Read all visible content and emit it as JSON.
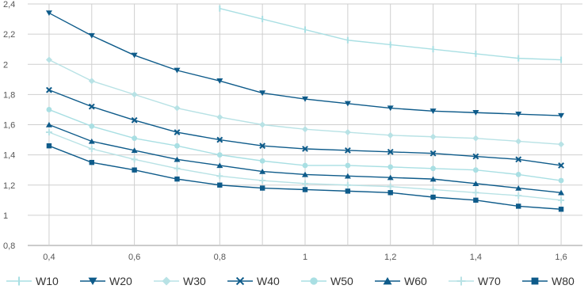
{
  "chart_data": {
    "type": "line",
    "title": "",
    "xlabel": "",
    "ylabel": "",
    "xlim": [
      0.35,
      1.65
    ],
    "ylim": [
      0.8,
      2.4
    ],
    "x_ticks": [
      "0,4",
      "0,6",
      "0,8",
      "1",
      "1,2",
      "1,4",
      "1,6"
    ],
    "y_ticks": [
      "0,8",
      "1",
      "1,2",
      "1,4",
      "1,6",
      "1,8",
      "2",
      "2,2",
      "2,4"
    ],
    "grid": "vertical and horizontal",
    "legend_position": "bottom",
    "x": [
      0.4,
      0.5,
      0.6,
      0.7,
      0.8,
      0.9,
      1.0,
      1.1,
      1.2,
      1.3,
      1.4,
      1.5,
      1.6
    ],
    "series": [
      {
        "name": "W10",
        "color": "#a9dfe3",
        "marker": "bar",
        "values": [
          null,
          null,
          null,
          null,
          2.37,
          2.3,
          2.23,
          2.16,
          2.13,
          2.1,
          2.07,
          2.04,
          2.03
        ]
      },
      {
        "name": "W20",
        "color": "#0e5b8a",
        "marker": "triangle-down",
        "values": [
          2.34,
          2.19,
          2.06,
          1.96,
          1.89,
          1.81,
          1.77,
          1.74,
          1.71,
          1.69,
          1.68,
          1.67,
          1.66
        ]
      },
      {
        "name": "W30",
        "color": "#b8e2e5",
        "marker": "diamond",
        "values": [
          2.03,
          1.89,
          1.8,
          1.71,
          1.65,
          1.6,
          1.57,
          1.55,
          1.53,
          1.52,
          1.51,
          1.49,
          1.47
        ]
      },
      {
        "name": "W40",
        "color": "#0e5b8a",
        "marker": "x",
        "values": [
          1.83,
          1.72,
          1.63,
          1.55,
          1.5,
          1.46,
          1.44,
          1.43,
          1.42,
          1.41,
          1.39,
          1.37,
          1.33
        ]
      },
      {
        "name": "W50",
        "color": "#a9dfe3",
        "marker": "circle",
        "values": [
          1.7,
          1.59,
          1.51,
          1.46,
          1.4,
          1.36,
          1.33,
          1.33,
          1.32,
          1.31,
          1.3,
          1.27,
          1.23
        ]
      },
      {
        "name": "W60",
        "color": "#0e5b8a",
        "marker": "triangle-up",
        "values": [
          1.6,
          1.49,
          1.43,
          1.37,
          1.33,
          1.29,
          1.27,
          1.26,
          1.25,
          1.24,
          1.21,
          1.18,
          1.15
        ]
      },
      {
        "name": "W70",
        "color": "#b8e2e5",
        "marker": "plus",
        "values": [
          1.55,
          1.44,
          1.37,
          1.31,
          1.26,
          1.23,
          1.21,
          1.2,
          1.19,
          1.17,
          1.15,
          1.13,
          1.1
        ]
      },
      {
        "name": "W80",
        "color": "#0e5b8a",
        "marker": "square",
        "values": [
          1.46,
          1.35,
          1.3,
          1.24,
          1.2,
          1.18,
          1.17,
          1.16,
          1.15,
          1.12,
          1.1,
          1.06,
          1.04
        ]
      }
    ]
  }
}
